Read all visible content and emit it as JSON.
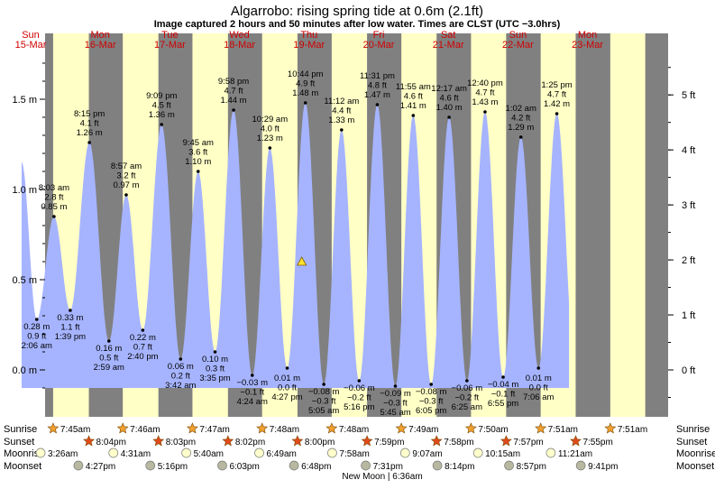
{
  "title": "Algarrobo: rising  spring tide at 0.6m (2.1ft)",
  "subtitle": "Image captured 2 hours and 50 minutes after low water. Times are CLST (UTC −3.0hrs)",
  "chart_data": {
    "type": "area",
    "y_left_ticks": [
      {
        "label": "1.5 m",
        "value": 1.5
      },
      {
        "label": "1.0 m",
        "value": 1.0
      },
      {
        "label": "0.5 m",
        "value": 0.5
      },
      {
        "label": "0.0 m",
        "value": 0.0
      }
    ],
    "y_right_ticks": [
      {
        "label": "5 ft",
        "value": 5
      },
      {
        "label": "4 ft",
        "value": 4
      },
      {
        "label": "3 ft",
        "value": 3
      },
      {
        "label": "2 ft",
        "value": 2
      },
      {
        "label": "1 ft",
        "value": 1
      },
      {
        "label": "0 ft",
        "value": 0
      }
    ],
    "days": [
      {
        "weekday": "Sun",
        "date": "15-Mar"
      },
      {
        "weekday": "Mon",
        "date": "16-Mar"
      },
      {
        "weekday": "Tue",
        "date": "17-Mar"
      },
      {
        "weekday": "Wed",
        "date": "18-Mar"
      },
      {
        "weekday": "Thu",
        "date": "19-Mar"
      },
      {
        "weekday": "Fri",
        "date": "20-Mar"
      },
      {
        "weekday": "Sat",
        "date": "21-Mar"
      },
      {
        "weekday": "Sun",
        "date": "22-Mar"
      },
      {
        "weekday": "Mon",
        "date": "23-Mar"
      }
    ],
    "tides": [
      {
        "type": "low",
        "time": "2:06 am",
        "ft": "0.9 ft",
        "m": "0.28 m",
        "value": 0.28
      },
      {
        "type": "high",
        "time": "8:03 am",
        "ft": "2.8 ft",
        "m": "0.85 m",
        "value": 0.85
      },
      {
        "type": "low",
        "time": "1:39 pm",
        "ft": "1.1 ft",
        "m": "0.33 m",
        "value": 0.33
      },
      {
        "type": "high",
        "time": "8:15 pm",
        "ft": "4.1 ft",
        "m": "1.26 m",
        "value": 1.26
      },
      {
        "type": "low",
        "time": "2:59 am",
        "ft": "0.5 ft",
        "m": "0.16 m",
        "value": 0.16
      },
      {
        "type": "high",
        "time": "8:57 am",
        "ft": "3.2 ft",
        "m": "0.97 m",
        "value": 0.97
      },
      {
        "type": "low",
        "time": "2:40 pm",
        "ft": "0.7 ft",
        "m": "0.22 m",
        "value": 0.22
      },
      {
        "type": "high",
        "time": "9:09 pm",
        "ft": "4.5 ft",
        "m": "1.36 m",
        "value": 1.36
      },
      {
        "type": "low",
        "time": "3:42 am",
        "ft": "0.2 ft",
        "m": "0.06 m",
        "value": 0.06
      },
      {
        "type": "high",
        "time": "9:45 am",
        "ft": "3.6 ft",
        "m": "1.10 m",
        "value": 1.1
      },
      {
        "type": "low",
        "time": "3:35 pm",
        "ft": "0.3 ft",
        "m": "0.10 m",
        "value": 0.1
      },
      {
        "type": "high",
        "time": "9:58 pm",
        "ft": "4.7 ft",
        "m": "1.44 m",
        "value": 1.44
      },
      {
        "type": "low",
        "time": "4:24 am",
        "ft": "−0.1 ft",
        "m": "−0.03 m",
        "value": -0.03
      },
      {
        "type": "high",
        "time": "10:29 am",
        "ft": "4.0 ft",
        "m": "1.23 m",
        "value": 1.23
      },
      {
        "type": "low",
        "time": "4:27 pm",
        "ft": "0.0 ft",
        "m": "0.01 m",
        "value": 0.01
      },
      {
        "type": "high",
        "time": "10:44 pm",
        "ft": "4.9 ft",
        "m": "1.48 m",
        "value": 1.48
      },
      {
        "type": "low",
        "time": "5:05 am",
        "ft": "−0.3 ft",
        "m": "−0.08 m",
        "value": -0.08
      },
      {
        "type": "high",
        "time": "11:12 am",
        "ft": "4.4 ft",
        "m": "1.33 m",
        "value": 1.33
      },
      {
        "type": "low",
        "time": "5:16 pm",
        "ft": "−0.2 ft",
        "m": "−0.06 m",
        "value": -0.06
      },
      {
        "type": "high",
        "time": "11:31 pm",
        "ft": "4.8 ft",
        "m": "1.47 m",
        "value": 1.47
      },
      {
        "type": "low",
        "time": "5:45 am",
        "ft": "−0.3 ft",
        "m": "−0.09 m",
        "value": -0.09
      },
      {
        "type": "high",
        "time": "11:55 am",
        "ft": "4.6 ft",
        "m": "1.41 m",
        "value": 1.41
      },
      {
        "type": "low",
        "time": "6:05 pm",
        "ft": "−0.3 ft",
        "m": "−0.08 m",
        "value": -0.08
      },
      {
        "type": "high",
        "time": "12:17 am",
        "ft": "4.6 ft",
        "m": "1.40 m",
        "value": 1.4
      },
      {
        "type": "low",
        "time": "6:25 am",
        "ft": "−0.2 ft",
        "m": "−0.06 m",
        "value": -0.06
      },
      {
        "type": "high",
        "time": "12:40 pm",
        "ft": "4.7 ft",
        "m": "1.43 m",
        "value": 1.43
      },
      {
        "type": "low",
        "time": "6:55 pm",
        "ft": "−0.1 ft",
        "m": "−0.04 m",
        "value": -0.04
      },
      {
        "type": "high",
        "time": "1:02 am",
        "ft": "4.2 ft",
        "m": "1.29 m",
        "value": 1.29
      },
      {
        "type": "low",
        "time": "7:06 am",
        "ft": "0.0 ft",
        "m": "0.01 m",
        "value": 0.01
      },
      {
        "type": "high",
        "time": "1:25 pm",
        "ft": "4.7 ft",
        "m": "1.42 m",
        "value": 1.42
      }
    ],
    "sunrise": [
      "7:45am",
      "7:46am",
      "7:47am",
      "7:48am",
      "7:48am",
      "7:49am",
      "7:50am",
      "7:51am",
      "7:51am"
    ],
    "sunset": [
      "8:04pm",
      "8:03pm",
      "8:02pm",
      "8:00pm",
      "7:59pm",
      "7:58pm",
      "7:57pm",
      "7:55pm"
    ],
    "moonrise": [
      "3:26am",
      "4:31am",
      "5:40am",
      "6:49am",
      "7:58am",
      "9:07am",
      "10:15am",
      "11:21am"
    ],
    "moonset": [
      "4:27pm",
      "5:16pm",
      "6:03pm",
      "6:48pm",
      "7:31pm",
      "8:14pm",
      "8:57pm",
      "9:41pm"
    ],
    "row_labels": {
      "sunrise": "Sunrise",
      "sunset": "Sunset",
      "moonrise": "Moonrise",
      "moonset": "Moonset"
    },
    "moon_phase": "New Moon | 6:36am",
    "current_marker_value": 0.6,
    "colors": {
      "night": "#808080",
      "day": "#ffffc6",
      "water": "#a6b4ff",
      "sunrise_star": "#f0a030",
      "sunset_star": "#e04a1a",
      "moonrise": "#ffffcc",
      "moonset": "#b8b8a0",
      "day_label": "#d00000"
    }
  }
}
